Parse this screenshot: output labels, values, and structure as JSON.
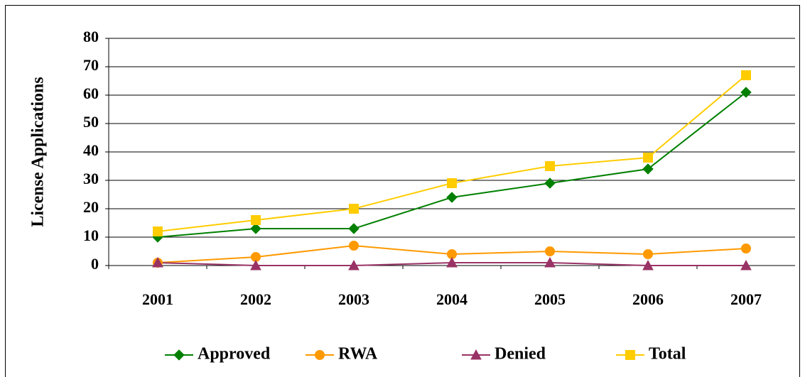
{
  "chart_data": {
    "type": "line",
    "y_label": "License Applications",
    "categories": [
      "2001",
      "2002",
      "2003",
      "2004",
      "2005",
      "2006",
      "2007"
    ],
    "series": [
      {
        "name": "Approved",
        "color": "#008000",
        "marker": "diamond",
        "values": [
          10,
          13,
          13,
          24,
          29,
          34,
          61
        ]
      },
      {
        "name": "RWA",
        "color": "#ff9900",
        "marker": "circle",
        "values": [
          1,
          3,
          7,
          4,
          5,
          4,
          6
        ]
      },
      {
        "name": "Denied",
        "color": "#993366",
        "marker": "triangle",
        "values": [
          1,
          0,
          0,
          1,
          1,
          0,
          0
        ]
      },
      {
        "name": "Total",
        "color": "#ffcc00",
        "marker": "square",
        "values": [
          12,
          16,
          20,
          29,
          35,
          38,
          67
        ]
      }
    ],
    "ylim": [
      0,
      80
    ],
    "yticks": [
      0,
      10,
      20,
      30,
      40,
      50,
      60,
      70,
      80
    ],
    "grid": true,
    "legend": "bottom"
  }
}
